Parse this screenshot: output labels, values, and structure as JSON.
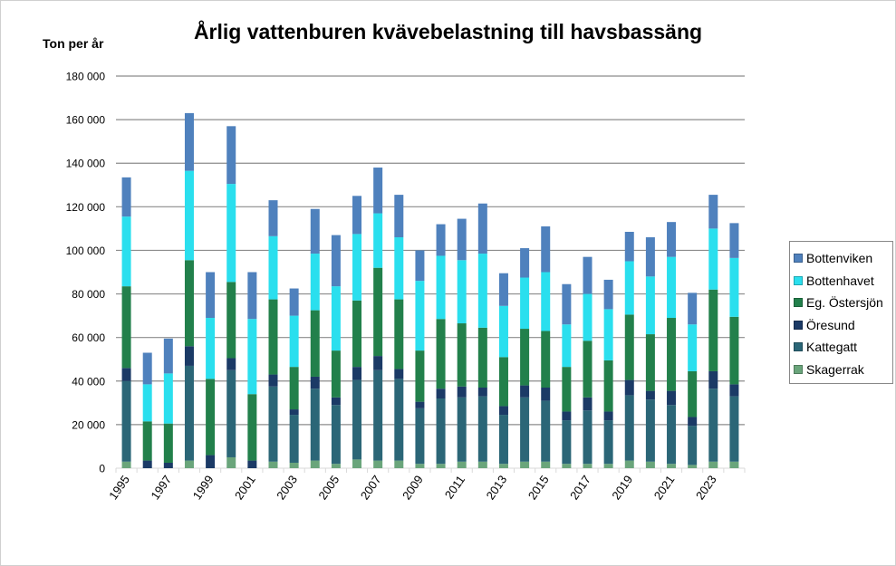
{
  "chart_data": {
    "type": "bar",
    "stacked": true,
    "title": "Årlig vattenburen kvävebelastning till havsbassäng",
    "ylabel": "Ton per år",
    "xlabel": "",
    "ylim": [
      0,
      180000
    ],
    "yticks": [
      "0",
      "20 000",
      "40 000",
      "60 000",
      "80 000",
      "100 000",
      "120 000",
      "140 000",
      "160 000",
      "180 000"
    ],
    "grid": true,
    "legend_position": "right",
    "categories": [
      "1995",
      "1996",
      "1997",
      "1998",
      "1999",
      "2000",
      "2001",
      "2002",
      "2003",
      "2004",
      "2005",
      "2006",
      "2007",
      "2008",
      "2009",
      "2010",
      "2011",
      "2012",
      "2013",
      "2014",
      "2015",
      "2016",
      "2017",
      "2018",
      "2019",
      "2020",
      "2021",
      "2022",
      "2023",
      "2024"
    ],
    "xtick_labels": [
      "1995",
      "1997",
      "1999",
      "2001",
      "2003",
      "2005",
      "2007",
      "2009",
      "2011",
      "2013",
      "2015",
      "2017",
      "2019",
      "2021",
      "2023"
    ],
    "series": [
      {
        "name": "Skagerrak",
        "color": "#6aa57b",
        "values": [
          3000,
          0,
          0,
          3500,
          0,
          5000,
          0,
          3000,
          2500,
          3500,
          2000,
          4000,
          3500,
          3500,
          2000,
          2000,
          3000,
          3000,
          2000,
          3000,
          3000,
          2000,
          2000,
          2000,
          3500,
          3000,
          2000,
          1500,
          3000,
          3000
        ]
      },
      {
        "name": "Kattegatt",
        "color": "#2b6677",
        "values": [
          37000,
          0,
          0,
          43500,
          0,
          40000,
          0,
          34500,
          22000,
          33000,
          27000,
          36500,
          41500,
          37500,
          25500,
          30000,
          29500,
          30000,
          22500,
          29500,
          28000,
          20000,
          24500,
          20000,
          30000,
          28500,
          27000,
          18000,
          33500,
          30000
        ]
      },
      {
        "name": "Öresund",
        "color": "#1b3a66",
        "values": [
          6000,
          3500,
          2500,
          9000,
          6000,
          5500,
          3500,
          5500,
          2500,
          5500,
          3500,
          6000,
          6500,
          4500,
          3000,
          4500,
          5000,
          4000,
          4000,
          5500,
          6000,
          4000,
          6000,
          4000,
          7000,
          4000,
          6500,
          4000,
          8000,
          5500
        ]
      },
      {
        "name": "Eg. Östersjön",
        "color": "#22804b",
        "values": [
          37500,
          18000,
          18000,
          39500,
          35000,
          35000,
          30500,
          34500,
          19500,
          30500,
          21500,
          30500,
          40500,
          32000,
          23500,
          32000,
          29000,
          27500,
          22500,
          26000,
          26000,
          20500,
          26000,
          23500,
          30000,
          26000,
          33500,
          21000,
          37500,
          31000
        ]
      },
      {
        "name": "Bottenhavet",
        "color": "#2adfee",
        "values": [
          32000,
          17000,
          23000,
          41000,
          28000,
          45000,
          34500,
          29000,
          23500,
          26000,
          29500,
          30500,
          25000,
          28500,
          32000,
          29000,
          29000,
          34000,
          23500,
          23500,
          27000,
          19500,
          21500,
          23500,
          24500,
          26500,
          28000,
          21500,
          28000,
          27000
        ]
      },
      {
        "name": "Bottenviken",
        "color": "#4f81bd",
        "values": [
          18000,
          14500,
          16000,
          26500,
          21000,
          26500,
          21500,
          16500,
          12500,
          20500,
          23500,
          17500,
          21000,
          19500,
          14000,
          14500,
          19000,
          23000,
          15000,
          13500,
          21000,
          18500,
          17000,
          13500,
          13500,
          18000,
          16000,
          14500,
          15500,
          16000
        ]
      }
    ]
  }
}
